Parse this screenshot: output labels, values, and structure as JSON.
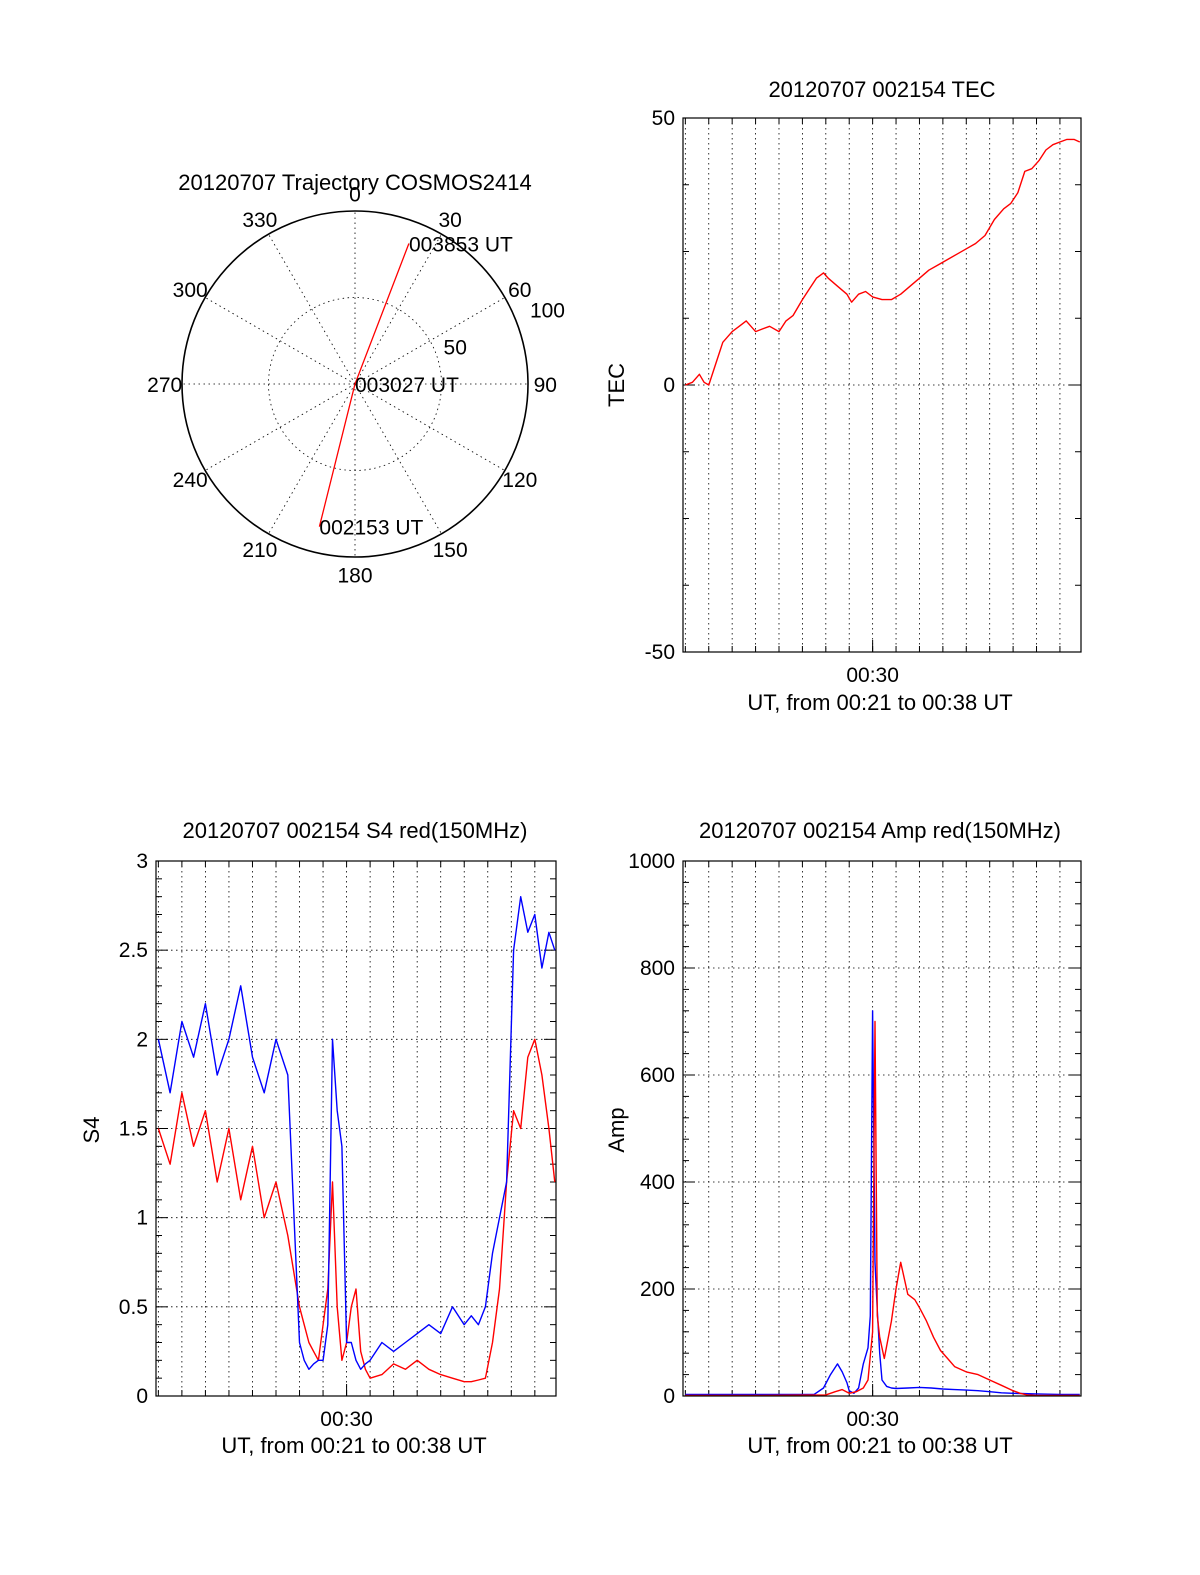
{
  "chart_data": [
    {
      "id": "trajectory",
      "type": "polar",
      "title": "20120707 Trajectory COSMOS2414",
      "azimuth_labels": [
        "0",
        "30",
        "60",
        "90",
        "120",
        "150",
        "180",
        "210",
        "240",
        "270",
        "300",
        "330"
      ],
      "azimuth_values": [
        0,
        30,
        60,
        90,
        120,
        150,
        180,
        210,
        240,
        270,
        300,
        330
      ],
      "radial_labels": [
        "50",
        "100"
      ],
      "radial_values": [
        50,
        100
      ],
      "rlim": [
        0,
        100
      ],
      "grid": true,
      "series_color": "#ff0000",
      "points": [
        {
          "label": "002153 UT",
          "az": 194,
          "r": 85
        },
        {
          "label": "003027 UT",
          "az": 0,
          "r": 0
        },
        {
          "label": "003853 UT",
          "az": 21,
          "r": 87
        }
      ]
    },
    {
      "id": "tec",
      "type": "line",
      "title": "20120707 002154 TEC",
      "xlabel": "UT, from 00:21 to 00:38 UT",
      "ylabel": "TEC",
      "xlim": [
        21.9,
        38.9
      ],
      "ylim": [
        -50,
        50
      ],
      "yticks": [
        -50,
        0,
        50
      ],
      "ytick_labels": [
        "-50",
        "0",
        "50"
      ],
      "xtick_labels": [
        "00:30"
      ],
      "xtick_values": [
        30
      ],
      "grid": true,
      "series": [
        {
          "color": "#ff0000",
          "x": [
            22.0,
            22.3,
            22.6,
            22.8,
            23.0,
            23.3,
            23.6,
            24.0,
            24.3,
            24.6,
            25.0,
            25.3,
            25.6,
            26.0,
            26.3,
            26.6,
            27.0,
            27.3,
            27.6,
            27.9,
            28.1,
            28.5,
            28.9,
            29.1,
            29.4,
            29.7,
            30.0,
            30.4,
            30.8,
            31.2,
            31.6,
            32.0,
            32.4,
            32.8,
            33.2,
            33.6,
            34.0,
            34.4,
            34.8,
            35.2,
            35.6,
            35.9,
            36.2,
            36.5,
            36.8,
            37.1,
            37.4,
            37.7,
            38.0,
            38.3,
            38.6,
            38.85
          ],
          "y": [
            0,
            0.5,
            2,
            0.5,
            0,
            4,
            8,
            10,
            11,
            12,
            10,
            10.5,
            11,
            10,
            12,
            13,
            16,
            18,
            20,
            21,
            20,
            18.5,
            17,
            15.5,
            17,
            17.5,
            16.5,
            16,
            16,
            17,
            18.5,
            20,
            21.5,
            22.5,
            23.5,
            24.5,
            25.5,
            26.5,
            28,
            31,
            33,
            34,
            36,
            40,
            40.5,
            42,
            44,
            45,
            45.5,
            46,
            46,
            45.5
          ]
        }
      ]
    },
    {
      "id": "s4",
      "type": "line",
      "title": "20120707 002154 S4 red(150MHz)",
      "xlabel": "UT, from 00:21 to 00:38 UT",
      "ylabel": "S4",
      "xlim": [
        21.9,
        38.9
      ],
      "ylim": [
        0,
        3
      ],
      "yticks": [
        0,
        0.5,
        1,
        1.5,
        2,
        2.5,
        3
      ],
      "ytick_labels": [
        "0",
        "0.5",
        "1",
        "1.5",
        "2",
        "2.5",
        "3"
      ],
      "xtick_labels": [
        "00:30"
      ],
      "xtick_values": [
        30
      ],
      "grid": true,
      "series": [
        {
          "color": "#ff0000",
          "x": [
            22.0,
            22.5,
            23.0,
            23.5,
            24.0,
            24.5,
            25.0,
            25.5,
            26.0,
            26.5,
            27.0,
            27.5,
            28.0,
            28.2,
            28.4,
            28.6,
            28.8,
            29.0,
            29.2,
            29.4,
            29.6,
            29.8,
            30.0,
            30.2,
            30.4,
            30.6,
            30.8,
            31.0,
            31.5,
            32.0,
            32.5,
            33.0,
            33.5,
            34.0,
            34.5,
            35.0,
            35.3,
            35.6,
            35.9,
            36.2,
            36.5,
            36.8,
            37.1,
            37.4,
            37.7,
            38.0,
            38.3,
            38.6,
            38.85
          ],
          "y": [
            1.5,
            1.3,
            1.7,
            1.4,
            1.6,
            1.2,
            1.5,
            1.1,
            1.4,
            1.0,
            1.2,
            0.9,
            0.5,
            0.4,
            0.3,
            0.25,
            0.2,
            0.4,
            0.6,
            1.2,
            0.5,
            0.2,
            0.3,
            0.5,
            0.6,
            0.25,
            0.15,
            0.1,
            0.12,
            0.18,
            0.15,
            0.2,
            0.15,
            0.12,
            0.1,
            0.08,
            0.08,
            0.09,
            0.1,
            0.3,
            0.6,
            1.2,
            1.6,
            1.5,
            1.9,
            2.0,
            1.8,
            1.5,
            1.2
          ]
        },
        {
          "color": "#0000ff",
          "x": [
            22.0,
            22.5,
            23.0,
            23.5,
            24.0,
            24.5,
            25.0,
            25.5,
            26.0,
            26.5,
            27.0,
            27.5,
            28.0,
            28.2,
            28.4,
            28.6,
            28.8,
            29.0,
            29.2,
            29.4,
            29.6,
            29.8,
            30.0,
            30.2,
            30.4,
            30.6,
            30.8,
            31.0,
            31.5,
            32.0,
            32.5,
            33.0,
            33.5,
            34.0,
            34.5,
            35.0,
            35.3,
            35.6,
            35.9,
            36.2,
            36.5,
            36.8,
            37.1,
            37.4,
            37.7,
            38.0,
            38.3,
            38.6,
            38.85
          ],
          "y": [
            2.0,
            1.7,
            2.1,
            1.9,
            2.2,
            1.8,
            2.0,
            2.3,
            1.9,
            1.7,
            2.0,
            1.8,
            0.3,
            0.2,
            0.15,
            0.18,
            0.2,
            0.2,
            0.4,
            2.0,
            1.6,
            1.4,
            0.3,
            0.3,
            0.2,
            0.15,
            0.18,
            0.2,
            0.3,
            0.25,
            0.3,
            0.35,
            0.4,
            0.35,
            0.5,
            0.4,
            0.45,
            0.4,
            0.5,
            0.8,
            1.0,
            1.2,
            2.5,
            2.8,
            2.6,
            2.7,
            2.4,
            2.6,
            2.5
          ]
        }
      ]
    },
    {
      "id": "amp",
      "type": "line",
      "title": "20120707 002154 Amp red(150MHz)",
      "xlabel": "UT, from 00:21 to 00:38 UT",
      "ylabel": "Amp",
      "xlim": [
        21.9,
        38.9
      ],
      "ylim": [
        0,
        1000
      ],
      "yticks": [
        0,
        200,
        400,
        600,
        800,
        1000
      ],
      "ytick_labels": [
        "0",
        "200",
        "400",
        "600",
        "800",
        "1000"
      ],
      "xtick_labels": [
        "00:30"
      ],
      "xtick_values": [
        30
      ],
      "grid": true,
      "series": [
        {
          "color": "#0000ff",
          "x": [
            22.0,
            25.0,
            27.5,
            27.9,
            28.2,
            28.5,
            28.7,
            28.9,
            29.0,
            29.2,
            29.4,
            29.6,
            29.8,
            29.9,
            30.0,
            30.1,
            30.2,
            30.3,
            30.4,
            30.6,
            30.8,
            31.0,
            31.5,
            32.0,
            32.5,
            33.0,
            33.5,
            34.0,
            34.5,
            35.0,
            35.5,
            36.0,
            37.0,
            38.0,
            38.85
          ],
          "y": [
            3,
            3,
            3,
            15,
            40,
            60,
            45,
            25,
            10,
            5,
            15,
            60,
            90,
            150,
            720,
            250,
            160,
            80,
            30,
            18,
            15,
            14,
            15,
            16,
            15,
            13,
            12,
            11,
            10,
            8,
            6,
            5,
            4,
            3,
            3
          ]
        },
        {
          "color": "#ff0000",
          "x": [
            22.0,
            25.0,
            28.0,
            28.4,
            28.7,
            29.0,
            29.3,
            29.6,
            29.8,
            30.0,
            30.1,
            30.2,
            30.3,
            30.5,
            30.8,
            31.0,
            31.2,
            31.5,
            31.8,
            32.0,
            32.3,
            32.6,
            32.9,
            33.2,
            33.5,
            34.0,
            34.5,
            35.0,
            35.5,
            36.0,
            36.3,
            36.6,
            37.0,
            38.0,
            38.85
          ],
          "y": [
            1,
            1,
            2,
            8,
            12,
            5,
            8,
            15,
            30,
            120,
            700,
            150,
            110,
            70,
            140,
            200,
            250,
            190,
            180,
            165,
            140,
            110,
            85,
            70,
            55,
            45,
            40,
            30,
            20,
            10,
            5,
            2,
            1,
            1,
            1
          ]
        }
      ]
    }
  ]
}
